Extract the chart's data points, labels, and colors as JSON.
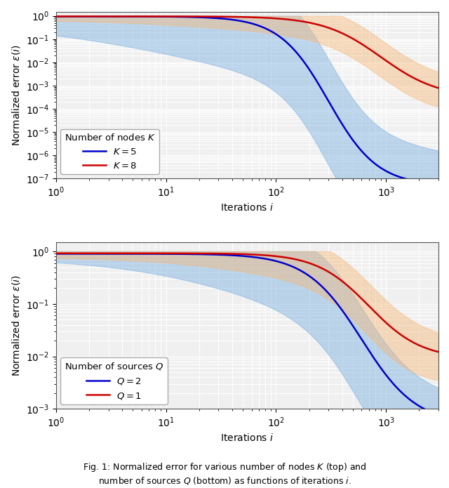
{
  "subplot1": {
    "legend_title": "Number of nodes $K$",
    "lines": [
      {
        "label": "$K = 5$",
        "color": "#0000cc"
      },
      {
        "label": "$K = 8$",
        "color": "#cc0000"
      }
    ],
    "fill_colors": [
      "#7aafe0",
      "#f5b87a"
    ],
    "xlabel": "Iterations $i$",
    "ylabel": "Normalized error $\\epsilon(i)$",
    "ylim_low": 1e-07,
    "ylim_high": 1.5,
    "xlim_low": 1,
    "xlim_high": 3000
  },
  "subplot2": {
    "legend_title": "Number of sources $Q$",
    "lines": [
      {
        "label": "$Q = 2$",
        "color": "#0000cc"
      },
      {
        "label": "$Q = 1$",
        "color": "#cc0000"
      }
    ],
    "fill_colors": [
      "#7aafe0",
      "#f5b87a"
    ],
    "xlabel": "Iterations $i$",
    "ylabel": "Normalized error $\\epsilon(i)$",
    "ylim_low": 0.001,
    "ylim_high": 1.5,
    "xlim_low": 1,
    "xlim_high": 3000
  },
  "bg_color": "#f0f0f0",
  "grid_color": "white",
  "fill_alpha": 0.45,
  "caption": "Fig. 1: Normalized error for various number of nodes $K$ (top) and\nnumber of sources $Q$ (bottom) as functions of iterations $i$."
}
